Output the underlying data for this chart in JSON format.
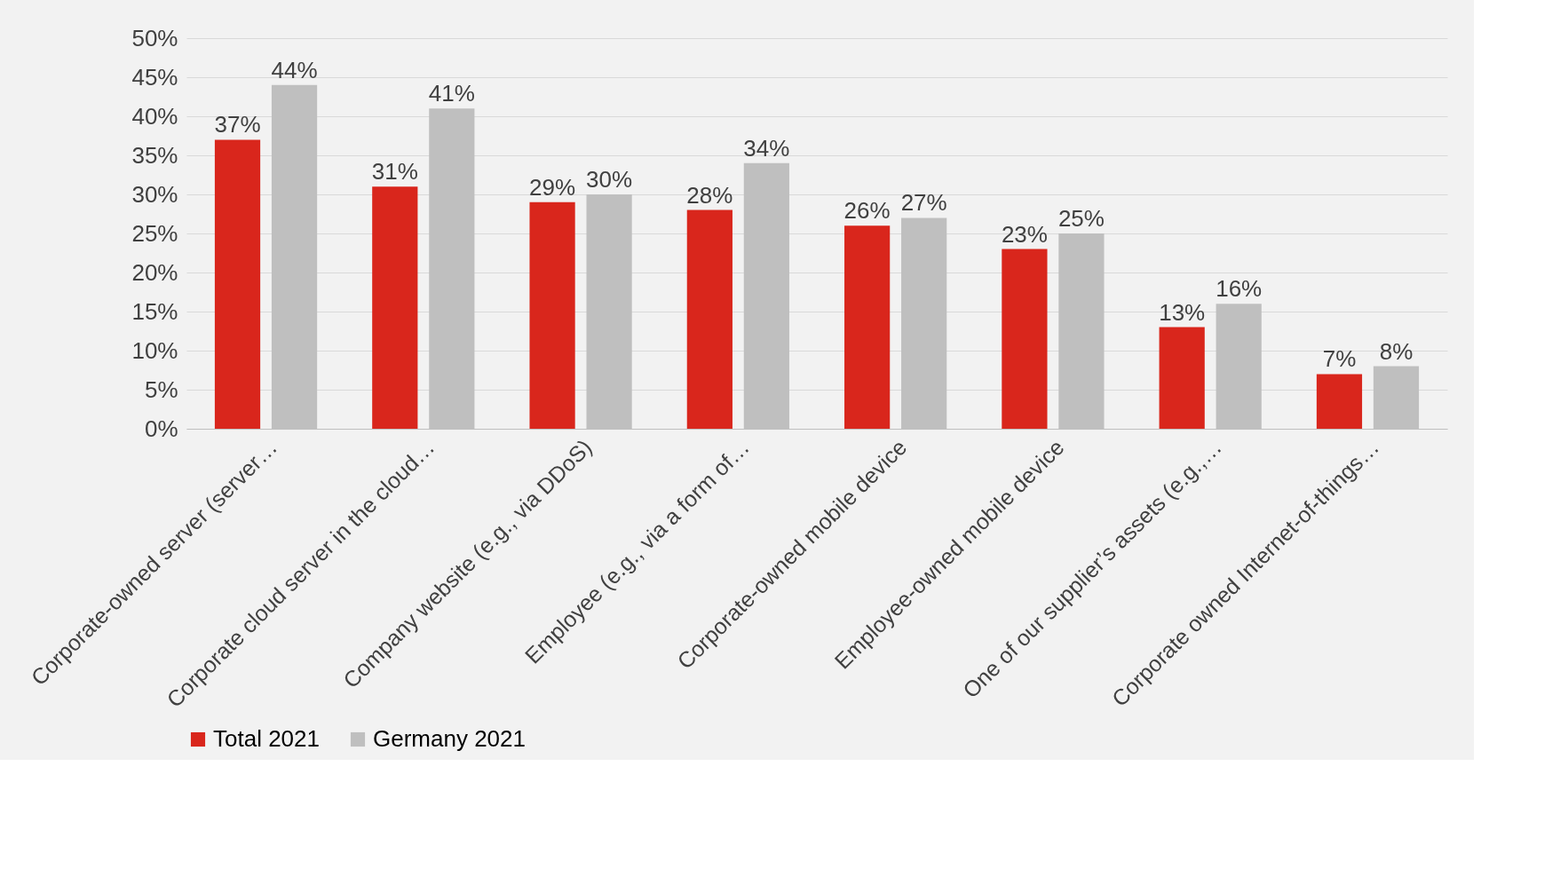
{
  "chart_data": {
    "type": "bar",
    "categories": [
      "Corporate-owned server (server…",
      "Corporate cloud server in the cloud…",
      "Company website (e.g., via DDoS)",
      "Employee (e.g., via a form of…",
      "Corporate-owned mobile device",
      "Employee-owned mobile device",
      "One of our supplier’s assets (e.g.,…",
      "Corporate owned Internet-of-things…"
    ],
    "series": [
      {
        "name": "Total 2021",
        "color": "#d9261c",
        "values": [
          37,
          31,
          29,
          28,
          26,
          23,
          13,
          7
        ],
        "value_labels": [
          "37%",
          "31%",
          "29%",
          "28%",
          "26%",
          "23%",
          "13%",
          "7%"
        ]
      },
      {
        "name": "Germany 2021",
        "color": "#bfbfbf",
        "values": [
          44,
          41,
          30,
          34,
          27,
          25,
          16,
          8
        ],
        "value_labels": [
          "44%",
          "41%",
          "30%",
          "34%",
          "27%",
          "25%",
          "16%",
          "8%"
        ]
      }
    ],
    "ylim": [
      0,
      50
    ],
    "yticks": [
      {
        "value": 0,
        "label": "0%"
      },
      {
        "value": 5,
        "label": "5%"
      },
      {
        "value": 10,
        "label": "10%"
      },
      {
        "value": 15,
        "label": "15%"
      },
      {
        "value": 20,
        "label": "20%"
      },
      {
        "value": 25,
        "label": "25%"
      },
      {
        "value": 30,
        "label": "30%"
      },
      {
        "value": 35,
        "label": "35%"
      },
      {
        "value": 40,
        "label": "40%"
      },
      {
        "value": 45,
        "label": "45%"
      },
      {
        "value": 50,
        "label": "50%"
      }
    ],
    "grid": "y",
    "legend": "bottom"
  }
}
